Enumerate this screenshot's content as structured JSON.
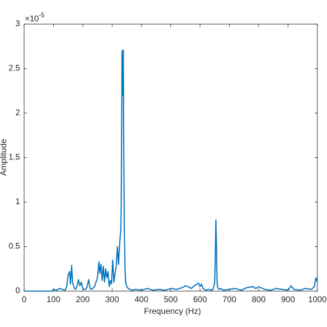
{
  "chart_data": {
    "type": "line",
    "x_label": "Frequency (Hz)",
    "y_label": "Amplitude",
    "y_multiplier": {
      "base": "×10",
      "exponent": "-5"
    },
    "xlim": [
      0,
      1000
    ],
    "ylim": [
      0,
      3
    ],
    "xticks": [
      0,
      100,
      200,
      300,
      400,
      500,
      600,
      700,
      800,
      900,
      1000
    ],
    "yticks": [
      0,
      0.5,
      1,
      1.5,
      2,
      2.5,
      3
    ],
    "grid": false,
    "x": [
      0,
      50,
      95,
      100,
      110,
      120,
      130,
      140,
      145,
      150,
      155,
      158,
      162,
      165,
      170,
      175,
      180,
      185,
      190,
      195,
      200,
      205,
      210,
      215,
      220,
      225,
      230,
      240,
      250,
      255,
      258,
      262,
      266,
      270,
      274,
      278,
      282,
      286,
      290,
      294,
      298,
      302,
      306,
      310,
      314,
      318,
      322,
      326,
      330,
      332,
      334,
      336,
      338,
      340,
      342,
      344,
      346,
      350,
      355,
      360,
      370,
      380,
      400,
      420,
      440,
      460,
      480,
      500,
      520,
      540,
      550,
      560,
      570,
      580,
      590,
      595,
      600,
      605,
      610,
      615,
      620,
      630,
      640,
      645,
      650,
      652,
      654,
      656,
      658,
      660,
      665,
      670,
      680,
      700,
      720,
      740,
      760,
      780,
      790,
      800,
      820,
      840,
      860,
      880,
      900,
      910,
      920,
      940,
      960,
      980,
      990,
      995,
      998,
      1000
    ],
    "series": [
      {
        "name": "Amplitude",
        "color": "#0072bd",
        "values": [
          0,
          0,
          0,
          0.02,
          0.01,
          0.03,
          0.02,
          0.01,
          0.05,
          0.18,
          0.22,
          0.08,
          0.29,
          0.1,
          0.04,
          0.02,
          0.05,
          0.13,
          0.06,
          0.1,
          0.03,
          0.02,
          0.02,
          0.05,
          0.13,
          0.03,
          0.02,
          0.05,
          0.15,
          0.33,
          0.2,
          0.3,
          0.12,
          0.28,
          0.1,
          0.25,
          0.15,
          0.22,
          0.05,
          0.12,
          0.08,
          0.35,
          0.1,
          0.2,
          0.28,
          0.5,
          0.3,
          0.55,
          0.7,
          1.4,
          2.7,
          2.2,
          2.71,
          1.5,
          0.6,
          0.25,
          0.1,
          0.05,
          0.03,
          0.02,
          0.01,
          0.02,
          0.01,
          0.03,
          0.01,
          0.02,
          0.01,
          0.03,
          0.02,
          0.04,
          0.06,
          0.05,
          0.03,
          0.06,
          0.08,
          0.09,
          0.05,
          0.08,
          0.03,
          0.02,
          0.01,
          0.02,
          0.01,
          0.03,
          0.1,
          0.4,
          0.8,
          0.5,
          0.1,
          0.04,
          0.02,
          0.03,
          0.01,
          0.02,
          0.03,
          0.01,
          0.04,
          0.05,
          0.03,
          0.05,
          0.02,
          0.01,
          0.03,
          0.02,
          0.01,
          0.06,
          0.02,
          0.01,
          0.03,
          0.02,
          0.05,
          0.15,
          0.12,
          0.1
        ]
      }
    ]
  }
}
